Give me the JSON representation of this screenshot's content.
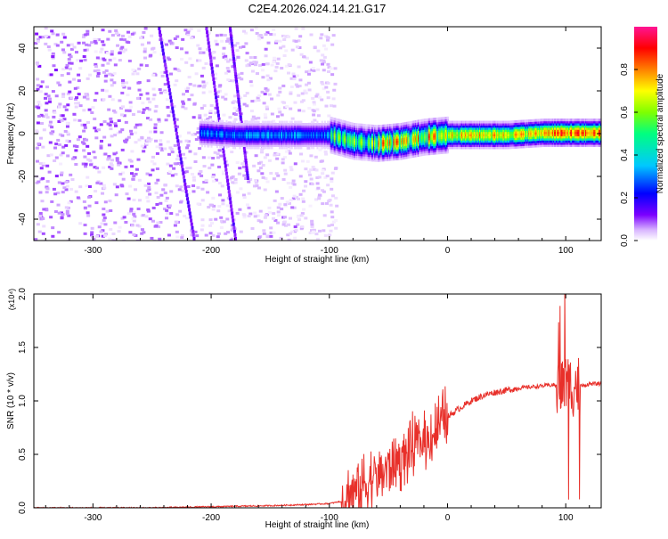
{
  "title": "C2E4.2026.024.14.21.G17",
  "chart_data": [
    {
      "type": "heatmap",
      "xlabel": "Height of straight line (km)",
      "ylabel": "Frequency (Hz)",
      "xlim": [
        -350,
        130
      ],
      "ylim": [
        -50,
        50
      ],
      "x_ticks": [
        -300,
        -200,
        -100,
        0,
        100
      ],
      "x_tick_labels": [
        "-300",
        "-200",
        "-100",
        "0",
        "100"
      ],
      "y_ticks": [
        -40,
        -20,
        0,
        20,
        40
      ],
      "y_tick_labels": [
        "-40",
        "-20",
        "0",
        "20",
        "40"
      ],
      "colorbar": {
        "label": "Normalized spectral amplitude",
        "range": [
          0,
          1
        ],
        "ticks": [
          0.0,
          0.2,
          0.4,
          0.6,
          0.8
        ],
        "tick_labels": [
          "0.0",
          "0.2",
          "0.4",
          "0.6",
          "0.8"
        ],
        "colors": [
          "#ffffff",
          "#d8b4ff",
          "#7b00ff",
          "#0000ff",
          "#00c8ff",
          "#00ff80",
          "#7fff00",
          "#ffff00",
          "#ff8000",
          "#ff0000",
          "#ff1493"
        ]
      },
      "ridge": {
        "x": [
          -210,
          -180,
          -150,
          -120,
          -100,
          -80,
          -60,
          -40,
          -20,
          0,
          20,
          50,
          80,
          100,
          120,
          130
        ],
        "y": [
          1,
          0,
          0,
          0,
          0,
          -3,
          -4,
          -3,
          -1,
          0,
          0,
          0,
          1,
          1,
          1,
          1
        ]
      },
      "noise_region": [
        -350,
        -95
      ]
    },
    {
      "type": "line",
      "xlabel": "Height of straight line (km)",
      "ylabel": "SNR (10 * v/v)",
      "scale_label": "(x10⁴)",
      "xlim": [
        -350,
        130
      ],
      "ylim": [
        0,
        2.0
      ],
      "x_ticks": [
        -300,
        -200,
        -100,
        0,
        100
      ],
      "x_tick_labels": [
        "-300",
        "-200",
        "-100",
        "0",
        "100"
      ],
      "y_ticks": [
        0.0,
        0.5,
        1.0,
        1.5,
        2.0
      ],
      "y_tick_labels": [
        "0.0",
        "0.5",
        "1.0",
        "1.5",
        "2.0"
      ],
      "color": "#e8302a",
      "series": [
        {
          "x": [
            -350,
            -300,
            -250,
            -200,
            -150,
            -120,
            -100,
            -90,
            -80,
            -70,
            -60,
            -50,
            -40,
            -30,
            -20,
            -10,
            0,
            10,
            20,
            30,
            40,
            50,
            60,
            70,
            80,
            90,
            95,
            100,
            105,
            110,
            115,
            120,
            130
          ],
          "values": [
            0.0,
            0.0,
            0.0,
            0.01,
            0.02,
            0.03,
            0.04,
            0.06,
            0.15,
            0.22,
            0.3,
            0.38,
            0.45,
            0.55,
            0.62,
            0.72,
            0.85,
            0.93,
            1.0,
            1.05,
            1.08,
            1.1,
            1.12,
            1.13,
            1.14,
            1.15,
            1.12,
            1.16,
            1.14,
            1.15,
            1.14,
            1.16,
            1.16
          ]
        }
      ]
    }
  ]
}
